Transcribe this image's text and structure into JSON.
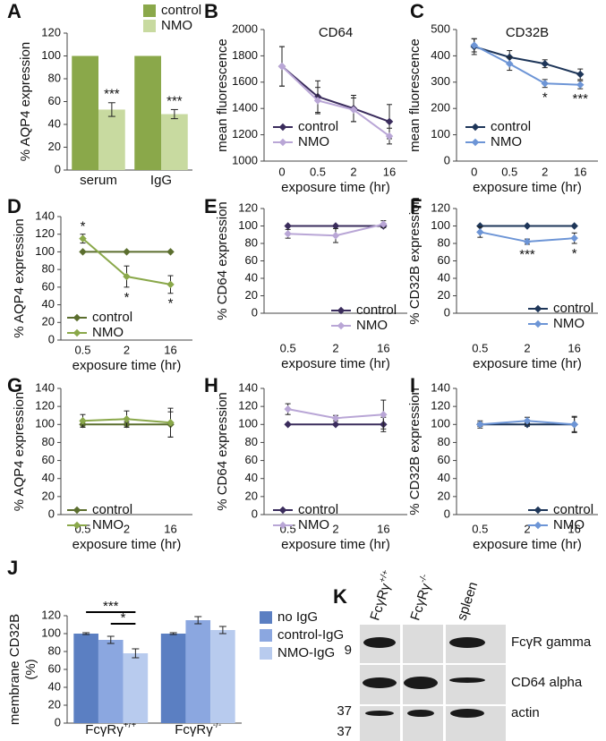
{
  "chart_data": [
    {
      "type": "bar",
      "panel": "A",
      "ylabel": "% AQP4 expression",
      "categories": [
        "serum",
        "IgG"
      ],
      "ylim": [
        0,
        120
      ],
      "yticks": [
        0,
        20,
        40,
        60,
        80,
        100,
        120
      ],
      "legend": "upper right",
      "series": [
        {
          "name": "control",
          "color": "#8aa84a",
          "values": [
            100,
            100
          ]
        },
        {
          "name": "NMO",
          "color": "#c8daa0",
          "values": [
            53,
            49
          ],
          "errors": [
            6,
            4
          ],
          "stars": [
            "***",
            "***"
          ]
        }
      ]
    },
    {
      "type": "line",
      "panel": "B",
      "title": "CD64",
      "ylabel": "mean fluorescence",
      "xlabel": "exposure time (hr)",
      "categories": [
        "0",
        "0.5",
        "2",
        "16"
      ],
      "ylim": [
        1000,
        2000
      ],
      "yticks": [
        1000,
        1200,
        1400,
        1600,
        1800,
        2000
      ],
      "legend": "lower left",
      "series": [
        {
          "name": "control",
          "color": "#3a2c5c",
          "values": [
            1720,
            1490,
            1400,
            1300
          ],
          "errors": [
            150,
            120,
            100,
            130
          ]
        },
        {
          "name": "NMO",
          "color": "#b9a6d6",
          "values": [
            1720,
            1460,
            1390,
            1190
          ],
          "errors": [
            150,
            100,
            90,
            60
          ]
        }
      ]
    },
    {
      "type": "line",
      "panel": "C",
      "title": "CD32B",
      "ylabel": "mean fluorescence",
      "xlabel": "exposure time (hr)",
      "categories": [
        "0",
        "0.5",
        "2",
        "16"
      ],
      "ylim": [
        0,
        500
      ],
      "yticks": [
        0,
        100,
        200,
        300,
        400,
        500
      ],
      "legend": "lower left",
      "series": [
        {
          "name": "control",
          "color": "#1e3659",
          "values": [
            435,
            395,
            370,
            330
          ],
          "errors": [
            30,
            25,
            15,
            20
          ]
        },
        {
          "name": "NMO",
          "color": "#6d95d6",
          "values": [
            440,
            370,
            295,
            290
          ],
          "errors": [
            25,
            25,
            15,
            15
          ],
          "stars": [
            null,
            null,
            "*",
            "***"
          ]
        }
      ]
    },
    {
      "type": "line",
      "panel": "D",
      "ylabel": "% AQP4 expression",
      "xlabel": "exposure time (hr)",
      "categories": [
        "0.5",
        "2",
        "16"
      ],
      "ylim": [
        0,
        140
      ],
      "yticks": [
        0,
        20,
        40,
        60,
        80,
        100,
        120,
        140
      ],
      "legend": "lower left",
      "series": [
        {
          "name": "control",
          "color": "#5b6e2e",
          "values": [
            100,
            100,
            100
          ]
        },
        {
          "name": "NMO",
          "color": "#8aa84a",
          "values": [
            115,
            72,
            63
          ],
          "errors": [
            5,
            12,
            10
          ],
          "stars": [
            "*",
            "*",
            "*"
          ]
        }
      ]
    },
    {
      "type": "line",
      "panel": "E",
      "ylabel": "% CD64 expression",
      "xlabel": "exposure time (hr)",
      "categories": [
        "0.5",
        "2",
        "16"
      ],
      "ylim": [
        0,
        120
      ],
      "yticks": [
        0,
        20,
        40,
        60,
        80,
        100,
        120
      ],
      "legend": "lower right",
      "series": [
        {
          "name": "control",
          "color": "#3a2c5c",
          "values": [
            100,
            100,
            100
          ]
        },
        {
          "name": "NMO",
          "color": "#b9a6d6",
          "values": [
            91,
            89,
            102
          ],
          "errors": [
            5,
            8,
            4
          ]
        }
      ]
    },
    {
      "type": "line",
      "panel": "F",
      "ylabel": "% CD32B expression",
      "xlabel": "exposure time (hr)",
      "categories": [
        "0.5",
        "2",
        "16"
      ],
      "ylim": [
        0,
        120
      ],
      "yticks": [
        0,
        20,
        40,
        60,
        80,
        100,
        120
      ],
      "legend": "lower right",
      "series": [
        {
          "name": "control",
          "color": "#1e3659",
          "values": [
            100,
            100,
            100
          ]
        },
        {
          "name": "NMO",
          "color": "#6d95d6",
          "values": [
            93,
            82,
            86
          ],
          "errors": [
            6,
            3,
            6
          ],
          "stars": [
            null,
            "***",
            "*"
          ]
        }
      ]
    },
    {
      "type": "line",
      "panel": "G",
      "ylabel": "% AQP4 expression",
      "xlabel": "exposure time (hr)",
      "categories": [
        "0.5",
        "2",
        "16"
      ],
      "ylim": [
        0,
        140
      ],
      "yticks": [
        0,
        20,
        40,
        60,
        80,
        100,
        120,
        140
      ],
      "legend": "lower left",
      "series": [
        {
          "name": "control",
          "color": "#5b6e2e",
          "values": [
            100,
            100,
            100
          ],
          "errors": [
            3,
            3,
            14
          ]
        },
        {
          "name": "NMO",
          "color": "#8aa84a",
          "values": [
            104,
            106,
            102
          ],
          "errors": [
            7,
            9,
            16
          ]
        }
      ]
    },
    {
      "type": "line",
      "panel": "H",
      "ylabel": "% CD64 expression",
      "xlabel": "exposure time (hr)",
      "categories": [
        "0.5",
        "2",
        "16"
      ],
      "ylim": [
        0,
        140
      ],
      "yticks": [
        0,
        20,
        40,
        60,
        80,
        100,
        120,
        140
      ],
      "legend": "lower left",
      "series": [
        {
          "name": "control",
          "color": "#3a2c5c",
          "values": [
            100,
            100,
            100
          ],
          "errors": [
            0,
            0,
            8
          ]
        },
        {
          "name": "NMO",
          "color": "#b9a6d6",
          "values": [
            117,
            107,
            111
          ],
          "errors": [
            6,
            3,
            16
          ]
        }
      ]
    },
    {
      "type": "line",
      "panel": "I",
      "ylabel": "% CD32B expression",
      "xlabel": "exposure time (hr)",
      "categories": [
        "0.5",
        "2",
        "16"
      ],
      "ylim": [
        0,
        140
      ],
      "yticks": [
        0,
        20,
        40,
        60,
        80,
        100,
        120,
        140
      ],
      "legend": "lower right",
      "series": [
        {
          "name": "control",
          "color": "#1e3659",
          "values": [
            100,
            100,
            100
          ],
          "errors": [
            2,
            2,
            8
          ]
        },
        {
          "name": "NMO",
          "color": "#6d95d6",
          "values": [
            100,
            104,
            100
          ],
          "errors": [
            4,
            4,
            9
          ]
        }
      ]
    },
    {
      "type": "bar",
      "panel": "J",
      "ylabel": [
        "membrane CD32B",
        "(%)"
      ],
      "categories": [
        "FcγRγ+/+",
        "FcγRγ-/-"
      ],
      "ylim": [
        0,
        120
      ],
      "yticks": [
        0,
        20,
        40,
        60,
        80,
        100,
        120
      ],
      "legend": "outside right",
      "series": [
        {
          "name": "no IgG",
          "color": "#5b7fc2",
          "values": [
            100,
            100
          ],
          "errors": [
            1,
            1
          ]
        },
        {
          "name": "control-IgG",
          "color": "#8ba7e0",
          "values": [
            93,
            115
          ],
          "errors": [
            4,
            4
          ]
        },
        {
          "name": "NMO-IgG",
          "color": "#b8cbee",
          "values": [
            78,
            104
          ],
          "errors": [
            5,
            4
          ]
        }
      ],
      "annotations": [
        {
          "text": "***",
          "category": "FcγRγ+/+",
          "between": [
            "no IgG",
            "NMO-IgG"
          ]
        },
        {
          "text": "*",
          "category": "FcγRγ+/+",
          "between": [
            "control-IgG",
            "NMO-IgG"
          ]
        }
      ]
    }
  ],
  "blot": {
    "panel": "K",
    "lanes": [
      "FcγRγ+/+",
      "FcγRγ-/-",
      "spleen"
    ],
    "bands": [
      "FcγR gamma",
      "CD64 alpha",
      "actin"
    ],
    "size_markers": [
      "9",
      "37",
      "37"
    ]
  }
}
